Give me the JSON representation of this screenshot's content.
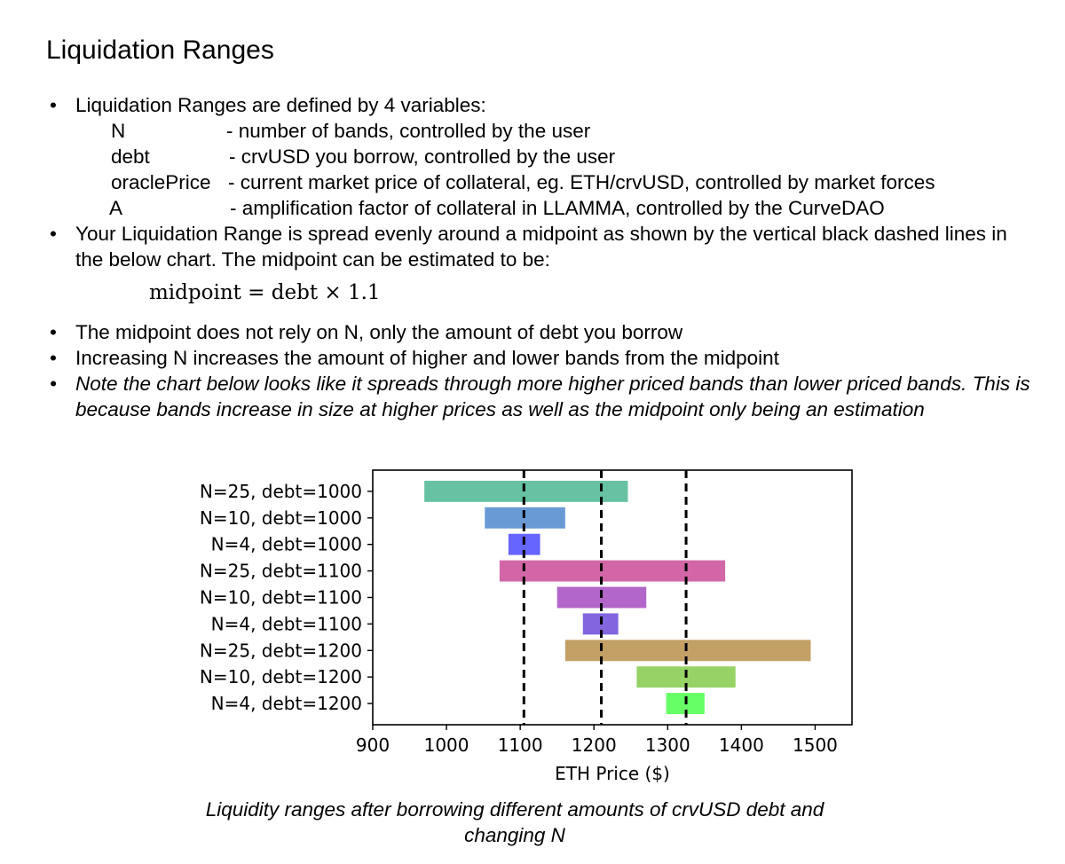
{
  "heading": "Liquidation Ranges",
  "bullets": {
    "b1": "Liquidation Ranges are defined by 4 variables:",
    "vars": [
      {
        "name": "N",
        "desc": "- number of bands, controlled by the user"
      },
      {
        "name": "debt",
        "desc": "- crvUSD you borrow, controlled by the user"
      },
      {
        "name": "oraclePrice",
        "desc": "- current market price of collateral, eg. ETH/crvUSD, controlled by market forces"
      },
      {
        "name": "A",
        "desc": "- amplification factor of collateral in LLAMMA, controlled by the CurveDAO"
      }
    ],
    "b2": "Your Liquidation Range is spread evenly around a midpoint as shown by the vertical black dashed lines in the below chart.  The midpoint can be estimated to be:",
    "formula": "midpoint = debt × 1.1",
    "b3": "The midpoint does not rely on N, only the amount of debt you borrow",
    "b4": "Increasing N increases the amount of higher and lower bands from the midpoint",
    "b5": "Note the chart below looks like it spreads through more higher priced bands than lower priced bands.  This is because bands increase in size at higher prices as well as the midpoint only being an estimation"
  },
  "chart_data": {
    "type": "bar",
    "orientation": "horizontal",
    "categories": [
      "N=25, debt=1000",
      "N=10, debt=1000",
      "N=4, debt=1000",
      "N=25, debt=1100",
      "N=10, debt=1100",
      "N=4, debt=1100",
      "N=25, debt=1200",
      "N=10, debt=1200",
      "N=4, debt=1200"
    ],
    "ranges": [
      [
        970,
        1246
      ],
      [
        1052,
        1161
      ],
      [
        1084,
        1127
      ],
      [
        1072,
        1378
      ],
      [
        1150,
        1271
      ],
      [
        1185,
        1233
      ],
      [
        1161,
        1494
      ],
      [
        1258,
        1392
      ],
      [
        1298,
        1350
      ]
    ],
    "colors": [
      "#66c2a3",
      "#6a9ad6",
      "#6666ff",
      "#d266a6",
      "#b266c9",
      "#8266e0",
      "#c2a066",
      "#96d266",
      "#66ff66"
    ],
    "midpoints": [
      1105,
      1210,
      1325
    ],
    "xlabel": "ETH Price ($)",
    "xlim": [
      900,
      1550
    ],
    "xticks": [
      900,
      1000,
      1100,
      1200,
      1300,
      1400,
      1500
    ]
  },
  "caption": "Liquidity ranges after borrowing different amounts of crvUSD debt and changing N"
}
